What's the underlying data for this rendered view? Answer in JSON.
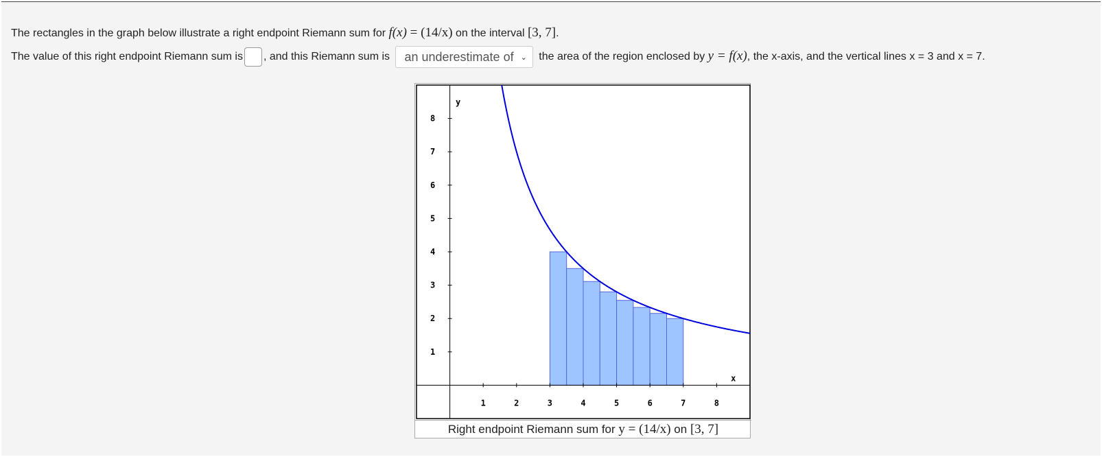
{
  "problem": {
    "line1_prefix": "The rectangles in the graph below illustrate a right endpoint Riemann sum for",
    "function_f": "f(x)",
    "function_eq": "= (14/x)",
    "line1_mid": "on the interval",
    "interval": "[3, 7]",
    "line1_end": ".",
    "line2_prefix": "The value of this right endpoint Riemann sum is",
    "line2_mid": ", and this Riemann sum is",
    "line2_after_select": "the area of the region enclosed by",
    "region_eq": "y = f(x)",
    "line2_suffix": ", the x-axis, and the vertical lines x = 3 and x = 7."
  },
  "answer": {
    "value": ""
  },
  "comparison_select": {
    "selected": "an underestimate of"
  },
  "caption": {
    "prefix": "Right endpoint Riemann sum for",
    "eq": "y = (14/x)",
    "on": "on",
    "interval": "[3, 7]"
  },
  "colors": {
    "curve": "#0000dd",
    "rect_fill": "#9ec5ff",
    "rect_stroke": "#5566dd"
  },
  "chart_data": {
    "type": "area",
    "function": "14/x",
    "xlabel": "x",
    "ylabel": "y",
    "xlim": [
      -1,
      9
    ],
    "ylim": [
      -1,
      9
    ],
    "xticks": [
      1,
      2,
      3,
      4,
      5,
      6,
      7,
      8
    ],
    "yticks": [
      1,
      2,
      3,
      4,
      5,
      6,
      7,
      8
    ],
    "rectangles": [
      {
        "x0": 3.0,
        "x1": 3.5,
        "height": 4.0
      },
      {
        "x0": 3.5,
        "x1": 4.0,
        "height": 3.5
      },
      {
        "x0": 4.0,
        "x1": 4.5,
        "height": 3.111
      },
      {
        "x0": 4.5,
        "x1": 5.0,
        "height": 2.8
      },
      {
        "x0": 5.0,
        "x1": 5.5,
        "height": 2.545
      },
      {
        "x0": 5.5,
        "x1": 6.0,
        "height": 2.333
      },
      {
        "x0": 6.0,
        "x1": 6.5,
        "height": 2.154
      },
      {
        "x0": 6.5,
        "x1": 7.0,
        "height": 2.0
      }
    ]
  }
}
